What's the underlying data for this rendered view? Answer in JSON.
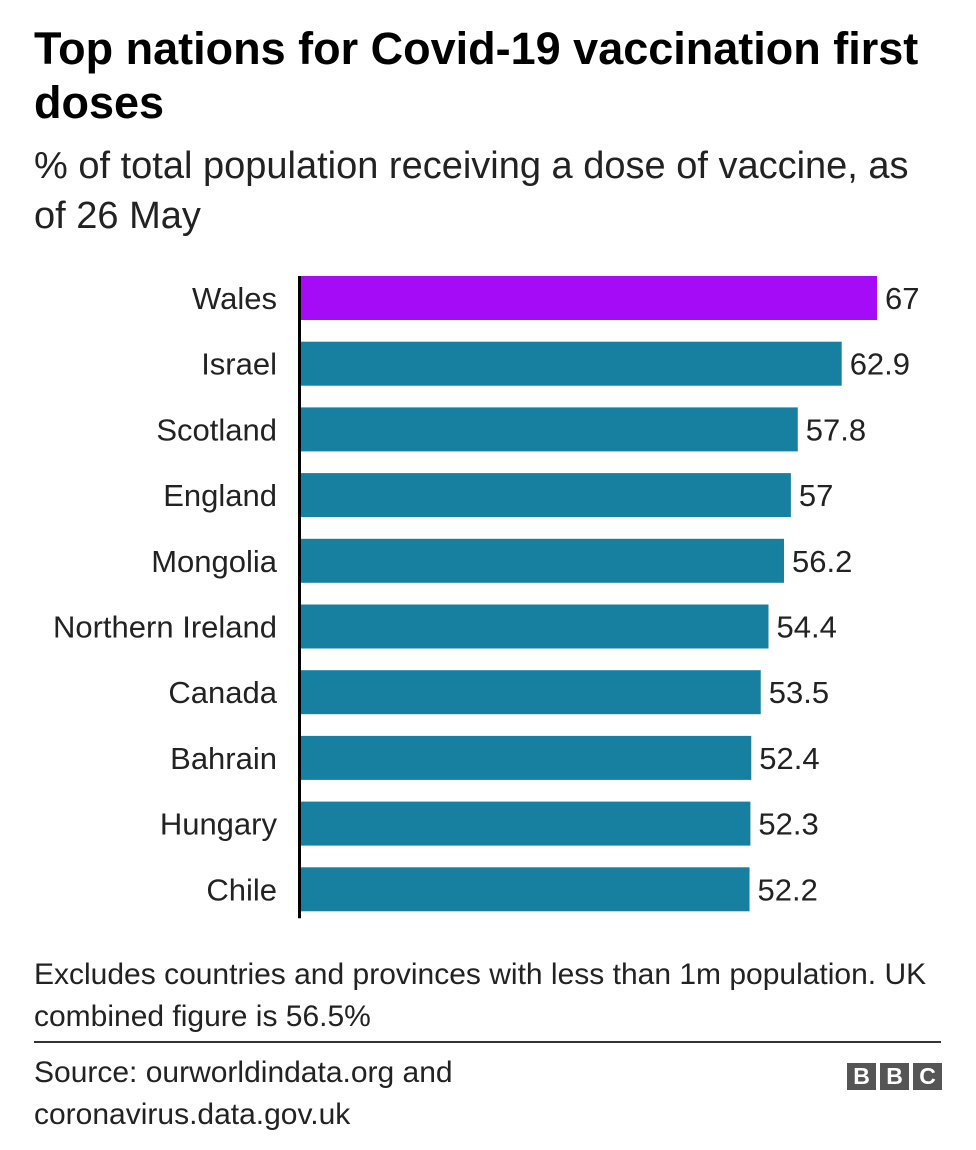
{
  "chart_data": {
    "type": "bar",
    "orientation": "horizontal",
    "title": "Top nations for Covid-19 vaccination first doses",
    "subtitle": "% of total population receiving a dose of vaccine, as of 26 May",
    "categories": [
      "Wales",
      "Israel",
      "Scotland",
      "England",
      "Mongolia",
      "Northern Ireland",
      "Canada",
      "Bahrain",
      "Hungary",
      "Chile"
    ],
    "values": [
      67,
      62.9,
      57.8,
      57,
      56.2,
      54.4,
      53.5,
      52.4,
      52.3,
      52.2
    ],
    "value_labels": [
      "67",
      "62.9",
      "57.8",
      "57",
      "56.2",
      "54.4",
      "53.5",
      "52.4",
      "52.3",
      "52.2"
    ],
    "highlight_category": "Wales",
    "colors": {
      "bar": "#1780a1",
      "highlight": "#a50bf7",
      "axis": "#000000",
      "text": "#222222"
    },
    "xlim": [
      0,
      67
    ],
    "grid": false,
    "legend": "none"
  },
  "footer": {
    "note": "Excludes countries and provinces with less than 1m population. UK combined figure is 56.5%",
    "source": "Source: ourworldindata.org and coronavirus.data.gov.uk",
    "logo_letters": [
      "B",
      "B",
      "C"
    ]
  }
}
